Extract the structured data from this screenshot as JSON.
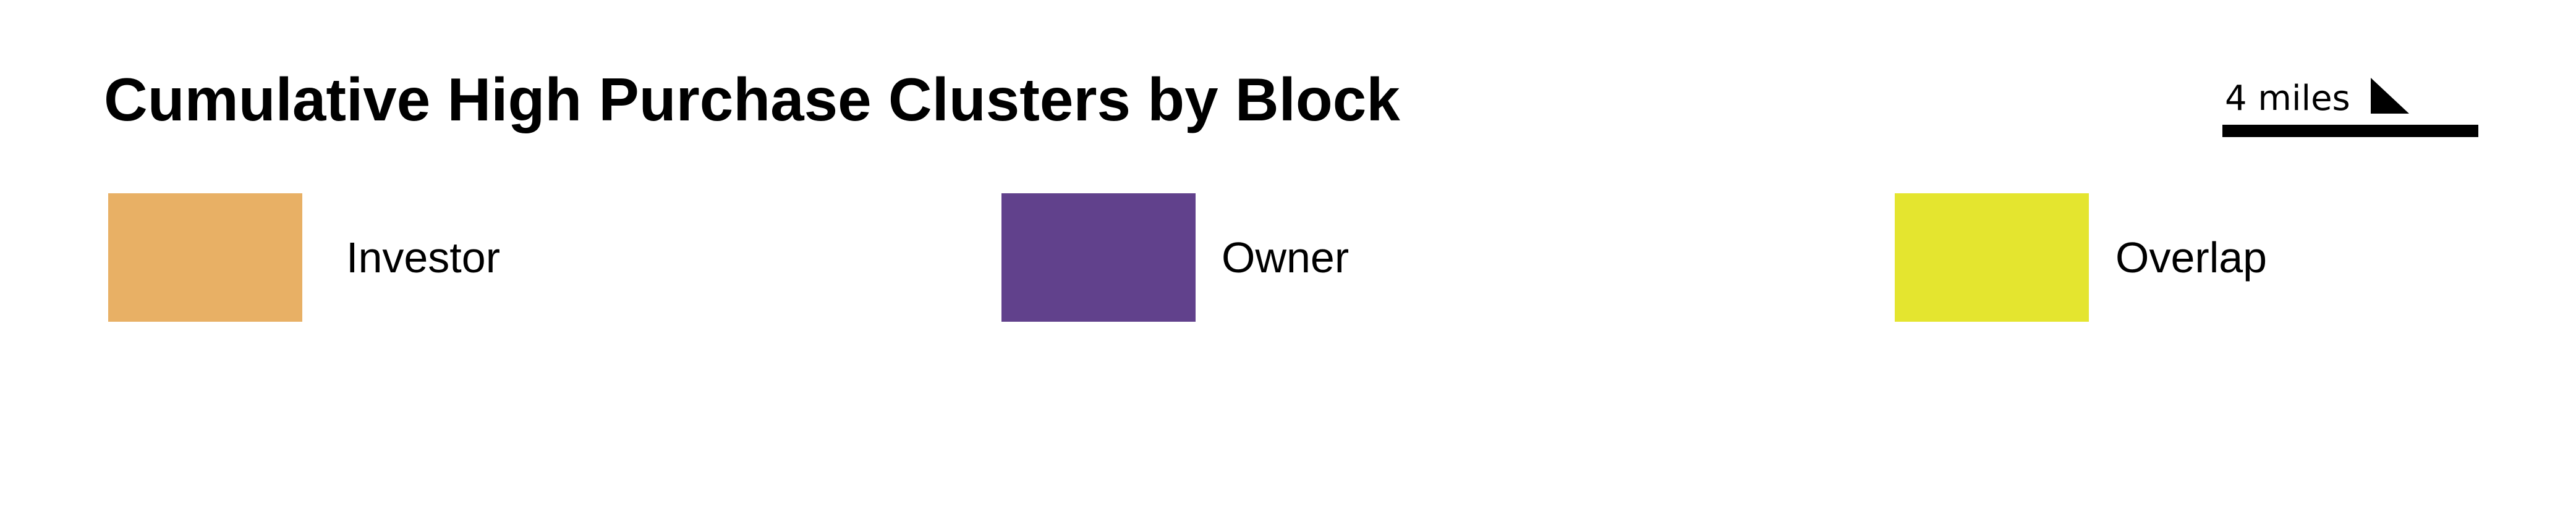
{
  "title": "Cumulative High Purchase Clusters by Block",
  "scale": {
    "label": "4 miles",
    "icon": "north-arrow-icon"
  },
  "legend": {
    "items": [
      {
        "label": "Investor",
        "color": "#E8B065"
      },
      {
        "label": "Owner",
        "color": "#61418C"
      },
      {
        "label": "Overlap",
        "color": "#E4E52F"
      }
    ]
  }
}
